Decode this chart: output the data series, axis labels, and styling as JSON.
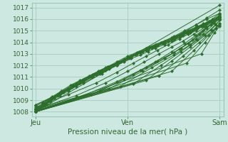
{
  "bg_color": "#cce8e0",
  "grid_color": "#9cc8b8",
  "line_color": "#2d6e2d",
  "marker_color": "#2d6e2d",
  "ylabel_ticks": [
    1008,
    1009,
    1010,
    1011,
    1012,
    1013,
    1014,
    1015,
    1016,
    1017
  ],
  "ylim": [
    1007.6,
    1017.4
  ],
  "xlabel": "Pression niveau de la mer( hPa )",
  "x_tick_labels": [
    "Jeu",
    "Ven",
    "Sam"
  ],
  "x_tick_positions": [
    0.0,
    0.5,
    1.0
  ],
  "xlim": [
    -0.02,
    1.02
  ],
  "series": [
    {
      "x": [
        0.0,
        0.04,
        0.08,
        0.13,
        0.18,
        0.22,
        0.26,
        0.3,
        0.35,
        0.4,
        0.44,
        0.48,
        0.52,
        0.57,
        0.61,
        0.65,
        0.7,
        0.74,
        0.78,
        0.83,
        0.87,
        0.91,
        0.96,
        1.0
      ],
      "y": [
        1008.5,
        1008.8,
        1009.2,
        1009.6,
        1010.0,
        1010.3,
        1010.6,
        1011.0,
        1011.3,
        1011.7,
        1012.0,
        1012.3,
        1012.6,
        1012.9,
        1013.2,
        1013.5,
        1013.8,
        1014.1,
        1014.4,
        1014.7,
        1015.0,
        1015.4,
        1015.8,
        1016.1
      ]
    },
    {
      "x": [
        0.0,
        0.04,
        0.08,
        0.13,
        0.18,
        0.22,
        0.26,
        0.3,
        0.35,
        0.4,
        0.44,
        0.48,
        0.52,
        0.57,
        0.61,
        0.65,
        0.7,
        0.74,
        0.78,
        0.83,
        0.87,
        0.91,
        0.96,
        1.0
      ],
      "y": [
        1008.3,
        1008.7,
        1009.1,
        1009.5,
        1009.9,
        1010.3,
        1010.7,
        1011.1,
        1011.5,
        1011.9,
        1012.2,
        1012.5,
        1012.8,
        1013.1,
        1013.4,
        1013.7,
        1014.0,
        1014.3,
        1014.6,
        1014.9,
        1015.2,
        1015.5,
        1015.8,
        1016.1
      ]
    },
    {
      "x": [
        0.0,
        0.04,
        0.08,
        0.13,
        0.18,
        0.22,
        0.26,
        0.3,
        0.35,
        0.4,
        0.44,
        0.48,
        0.52,
        0.57,
        0.61,
        0.65,
        0.7,
        0.74,
        0.78,
        0.83,
        0.87,
        0.91,
        0.96,
        1.0
      ],
      "y": [
        1008.1,
        1008.5,
        1008.9,
        1009.4,
        1009.8,
        1010.2,
        1010.6,
        1011.0,
        1011.4,
        1011.8,
        1012.2,
        1012.5,
        1012.8,
        1013.1,
        1013.4,
        1013.7,
        1014.0,
        1014.3,
        1014.6,
        1015.0,
        1015.3,
        1015.6,
        1015.9,
        1016.2
      ]
    },
    {
      "x": [
        0.0,
        0.04,
        0.09,
        0.14,
        0.19,
        0.24,
        0.29,
        0.34,
        0.39,
        0.44,
        0.48,
        0.52,
        0.57,
        0.61,
        0.65,
        0.7,
        0.75,
        0.79,
        0.84,
        0.88,
        0.92,
        0.96,
        1.0
      ],
      "y": [
        1008.2,
        1008.7,
        1009.3,
        1009.8,
        1010.3,
        1010.7,
        1011.1,
        1011.5,
        1011.9,
        1012.2,
        1012.5,
        1012.8,
        1013.1,
        1013.4,
        1013.7,
        1014.0,
        1014.3,
        1014.6,
        1014.9,
        1015.2,
        1015.5,
        1015.8,
        1016.0
      ]
    },
    {
      "x": [
        0.0,
        0.05,
        0.1,
        0.15,
        0.2,
        0.26,
        0.31,
        0.36,
        0.4,
        0.45,
        0.5,
        0.55,
        0.6,
        0.65,
        0.7,
        0.74,
        0.79,
        0.84,
        0.88,
        0.93,
        0.96,
        1.0
      ],
      "y": [
        1008.0,
        1008.6,
        1009.2,
        1009.8,
        1010.3,
        1010.8,
        1011.2,
        1011.6,
        1011.9,
        1012.3,
        1012.7,
        1013.1,
        1013.5,
        1013.8,
        1014.1,
        1014.4,
        1014.7,
        1015.0,
        1015.3,
        1015.6,
        1015.8,
        1016.0
      ]
    },
    {
      "x": [
        0.0,
        0.06,
        0.12,
        0.18,
        0.24,
        0.3,
        0.35,
        0.4,
        0.45,
        0.5,
        0.55,
        0.6,
        0.65,
        0.7,
        0.75,
        0.8,
        0.85,
        0.9,
        0.95,
        1.0
      ],
      "y": [
        1008.0,
        1008.7,
        1009.4,
        1010.0,
        1010.5,
        1011.0,
        1011.4,
        1011.8,
        1012.2,
        1012.6,
        1013.0,
        1013.3,
        1013.6,
        1013.9,
        1014.2,
        1014.6,
        1015.0,
        1015.4,
        1015.8,
        1016.2
      ]
    },
    {
      "x": [
        0.0,
        0.07,
        0.13,
        0.2,
        0.26,
        0.32,
        0.38,
        0.44,
        0.5,
        0.56,
        0.62,
        0.68,
        0.74,
        0.8,
        0.87,
        0.93,
        1.0
      ],
      "y": [
        1008.1,
        1008.9,
        1009.6,
        1010.3,
        1010.8,
        1011.3,
        1011.8,
        1012.3,
        1012.8,
        1013.2,
        1013.6,
        1014.0,
        1014.4,
        1014.8,
        1015.3,
        1015.7,
        1016.1
      ]
    },
    {
      "x": [
        0.0,
        0.08,
        0.15,
        0.22,
        0.29,
        0.36,
        0.42,
        0.48,
        0.54,
        0.6,
        0.66,
        0.72,
        0.78,
        0.84,
        0.9,
        0.96,
        1.0
      ],
      "y": [
        1008.2,
        1009.0,
        1009.7,
        1010.4,
        1011.0,
        1011.5,
        1012.0,
        1012.5,
        1012.9,
        1013.3,
        1013.7,
        1014.1,
        1014.5,
        1014.9,
        1015.4,
        1015.8,
        1016.1
      ]
    },
    {
      "x": [
        0.0,
        0.1,
        0.18,
        0.26,
        0.33,
        0.4,
        0.46,
        0.52,
        0.58,
        0.64,
        0.7,
        0.76,
        0.82,
        0.88,
        0.94,
        1.0
      ],
      "y": [
        1008.3,
        1009.2,
        1009.9,
        1010.6,
        1011.2,
        1011.8,
        1012.3,
        1012.8,
        1013.2,
        1013.6,
        1014.0,
        1014.4,
        1014.8,
        1015.3,
        1015.8,
        1016.3
      ]
    },
    {
      "x": [
        0.0,
        0.12,
        0.22,
        0.31,
        0.38,
        0.45,
        0.51,
        0.57,
        0.63,
        0.69,
        0.75,
        0.81,
        0.87,
        0.93,
        1.0
      ],
      "y": [
        1008.6,
        1009.5,
        1010.3,
        1011.0,
        1011.6,
        1012.2,
        1012.7,
        1013.2,
        1013.6,
        1014.0,
        1014.5,
        1015.0,
        1015.5,
        1016.0,
        1016.5
      ]
    },
    {
      "x": [
        0.0,
        0.14,
        0.26,
        0.36,
        0.44,
        0.51,
        0.57,
        0.63,
        0.69,
        0.75,
        0.81,
        0.87,
        0.93,
        1.0
      ],
      "y": [
        1008.6,
        1009.6,
        1010.5,
        1011.3,
        1012.0,
        1012.6,
        1013.1,
        1013.5,
        1013.9,
        1014.4,
        1014.9,
        1015.5,
        1016.1,
        1016.8
      ]
    },
    {
      "x": [
        0.0,
        0.18,
        0.33,
        0.44,
        0.53,
        0.6,
        0.66,
        0.72,
        0.78,
        0.84,
        0.9,
        0.96,
        1.0
      ],
      "y": [
        1008.4,
        1009.5,
        1010.5,
        1011.4,
        1012.2,
        1012.8,
        1013.3,
        1013.8,
        1014.3,
        1014.8,
        1015.4,
        1016.0,
        1016.5
      ]
    },
    {
      "x": [
        0.0,
        0.22,
        0.38,
        0.5,
        0.59,
        0.67,
        0.74,
        0.8,
        0.86,
        0.92,
        0.97,
        1.0
      ],
      "y": [
        1008.2,
        1009.4,
        1010.5,
        1011.5,
        1012.3,
        1013.0,
        1013.6,
        1014.1,
        1014.7,
        1015.3,
        1015.9,
        1016.3
      ]
    },
    {
      "x": [
        0.0,
        0.26,
        0.44,
        0.57,
        0.66,
        0.74,
        0.81,
        0.87,
        0.93,
        1.0
      ],
      "y": [
        1008.0,
        1009.4,
        1010.6,
        1011.6,
        1012.4,
        1013.2,
        1013.9,
        1014.6,
        1015.3,
        1016.0
      ]
    },
    {
      "x": [
        0.0,
        0.3,
        0.48,
        0.6,
        0.7,
        0.78,
        0.85,
        0.91,
        0.96,
        1.0
      ],
      "y": [
        1008.0,
        1009.5,
        1010.8,
        1011.8,
        1012.6,
        1013.4,
        1014.2,
        1015.0,
        1015.7,
        1016.4
      ]
    },
    {
      "x": [
        0.0,
        0.35,
        0.53,
        0.65,
        0.75,
        0.83,
        0.89,
        0.95,
        1.0
      ],
      "y": [
        1008.1,
        1009.8,
        1011.2,
        1012.3,
        1013.1,
        1013.9,
        1014.7,
        1015.5,
        1016.3
      ]
    },
    {
      "x": [
        0.0,
        0.4,
        0.58,
        0.7,
        0.79,
        0.87,
        0.93,
        1.0
      ],
      "y": [
        1008.3,
        1010.0,
        1011.5,
        1012.6,
        1013.5,
        1014.3,
        1015.2,
        1016.2
      ]
    },
    {
      "x": [
        0.0,
        0.46,
        0.63,
        0.75,
        0.84,
        0.91,
        0.97,
        1.0
      ],
      "y": [
        1008.2,
        1010.2,
        1011.8,
        1012.9,
        1013.8,
        1014.7,
        1015.6,
        1016.1
      ]
    },
    {
      "x": [
        0.0,
        0.53,
        0.68,
        0.79,
        0.88,
        0.95,
        1.0
      ],
      "y": [
        1008.0,
        1010.4,
        1012.0,
        1013.2,
        1014.2,
        1015.1,
        1015.9
      ]
    },
    {
      "x": [
        0.0,
        0.6,
        0.74,
        0.84,
        0.92,
        0.98,
        1.0
      ],
      "y": [
        1008.0,
        1010.7,
        1012.4,
        1013.6,
        1014.6,
        1015.5,
        1015.9
      ]
    },
    {
      "x": [
        0.0,
        0.67,
        0.8,
        0.89,
        0.96,
        1.0
      ],
      "y": [
        1008.1,
        1011.1,
        1012.8,
        1014.0,
        1015.0,
        1015.6
      ]
    },
    {
      "x": [
        0.0,
        0.74,
        0.86,
        0.94,
        1.0
      ],
      "y": [
        1008.0,
        1011.5,
        1013.3,
        1014.6,
        1015.5
      ]
    },
    {
      "x": [
        0.0,
        0.82,
        0.92,
        0.98,
        1.0
      ],
      "y": [
        1008.0,
        1012.2,
        1014.0,
        1015.2,
        1015.6
      ]
    },
    {
      "x": [
        0.0,
        0.9,
        0.97,
        1.0
      ],
      "y": [
        1008.0,
        1013.0,
        1014.8,
        1015.4
      ]
    },
    {
      "x": [
        0.0,
        1.0
      ],
      "y": [
        1008.0,
        1017.2
      ]
    }
  ]
}
